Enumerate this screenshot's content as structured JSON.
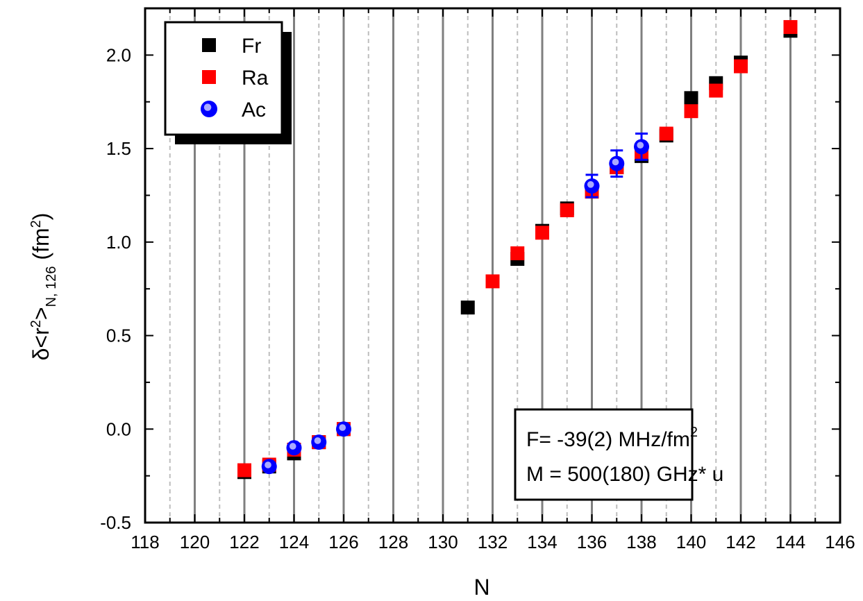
{
  "chart_data": {
    "type": "scatter",
    "xlabel": "N",
    "ylabel": "δ<r²>N, 126 (fm²)",
    "ylabel_parts": {
      "base": "δ<r",
      "sup1": "2",
      "mid": ">",
      "sub": "N, 126",
      "unit_pre": " (fm",
      "sup2": "2",
      "unit_post": ")"
    },
    "xlim": [
      118,
      146
    ],
    "ylim": [
      -0.5,
      2.25
    ],
    "x_ticks": [
      118,
      120,
      122,
      124,
      126,
      128,
      130,
      132,
      134,
      136,
      138,
      140,
      142,
      144,
      146
    ],
    "x_tick_labels": [
      "118",
      "120",
      "122",
      "124",
      "126",
      "128",
      "130",
      "132",
      "134",
      "136",
      "138",
      "140",
      "142",
      "144",
      "146"
    ],
    "y_ticks": [
      -0.5,
      0.0,
      0.5,
      1.0,
      1.5,
      2.0
    ],
    "y_tick_labels": [
      "-0.5",
      "0.0",
      "0.5",
      "1.0",
      "1.5",
      "2.0"
    ],
    "grid": "vertical lines: solid at odd N 121–143, dashed at even N 120–144",
    "legend_position": "top-left",
    "series": [
      {
        "name": "Fr",
        "color": "#000000",
        "marker": "square",
        "points": [
          {
            "x": 122,
            "y": -0.23
          },
          {
            "x": 123,
            "y": -0.2
          },
          {
            "x": 124,
            "y": -0.13
          },
          {
            "x": 125,
            "y": -0.07
          },
          {
            "x": 126,
            "y": 0.0
          },
          {
            "x": 131,
            "y": 0.65
          },
          {
            "x": 133,
            "y": 0.91
          },
          {
            "x": 134,
            "y": 1.06
          },
          {
            "x": 135,
            "y": 1.18
          },
          {
            "x": 136,
            "y": 1.27
          },
          {
            "x": 137,
            "y": 1.4
          },
          {
            "x": 138,
            "y": 1.46
          },
          {
            "x": 139,
            "y": 1.57
          },
          {
            "x": 140,
            "y": 1.77
          },
          {
            "x": 141,
            "y": 1.85
          },
          {
            "x": 142,
            "y": 1.96
          },
          {
            "x": 144,
            "y": 2.13
          }
        ]
      },
      {
        "name": "Ra",
        "color": "#ff0000",
        "marker": "square",
        "points": [
          {
            "x": 122,
            "y": -0.22
          },
          {
            "x": 123,
            "y": -0.19
          },
          {
            "x": 124,
            "y": -0.11
          },
          {
            "x": 125,
            "y": -0.07
          },
          {
            "x": 126,
            "y": 0.0
          },
          {
            "x": 132,
            "y": 0.79
          },
          {
            "x": 133,
            "y": 0.94
          },
          {
            "x": 134,
            "y": 1.05
          },
          {
            "x": 135,
            "y": 1.17
          },
          {
            "x": 136,
            "y": 1.27
          },
          {
            "x": 137,
            "y": 1.4
          },
          {
            "x": 138,
            "y": 1.48
          },
          {
            "x": 139,
            "y": 1.58
          },
          {
            "x": 140,
            "y": 1.7
          },
          {
            "x": 141,
            "y": 1.81
          },
          {
            "x": 142,
            "y": 1.94
          },
          {
            "x": 144,
            "y": 2.15
          }
        ]
      },
      {
        "name": "Ac",
        "color": "#0000ff",
        "marker": "circle",
        "points": [
          {
            "x": 123,
            "y": -0.2,
            "err": 0.02
          },
          {
            "x": 124,
            "y": -0.1,
            "err": 0.02
          },
          {
            "x": 125,
            "y": -0.07,
            "err": 0.02
          },
          {
            "x": 126,
            "y": 0.0,
            "err": 0.01
          },
          {
            "x": 136,
            "y": 1.3,
            "err": 0.06
          },
          {
            "x": 137,
            "y": 1.42,
            "err": 0.07
          },
          {
            "x": 138,
            "y": 1.51,
            "err": 0.07
          }
        ]
      }
    ],
    "annotation": {
      "line1": "F= -39(2) MHz/fm",
      "line1_sup": "2",
      "line2": "M = 500(180) GHz* u"
    }
  }
}
